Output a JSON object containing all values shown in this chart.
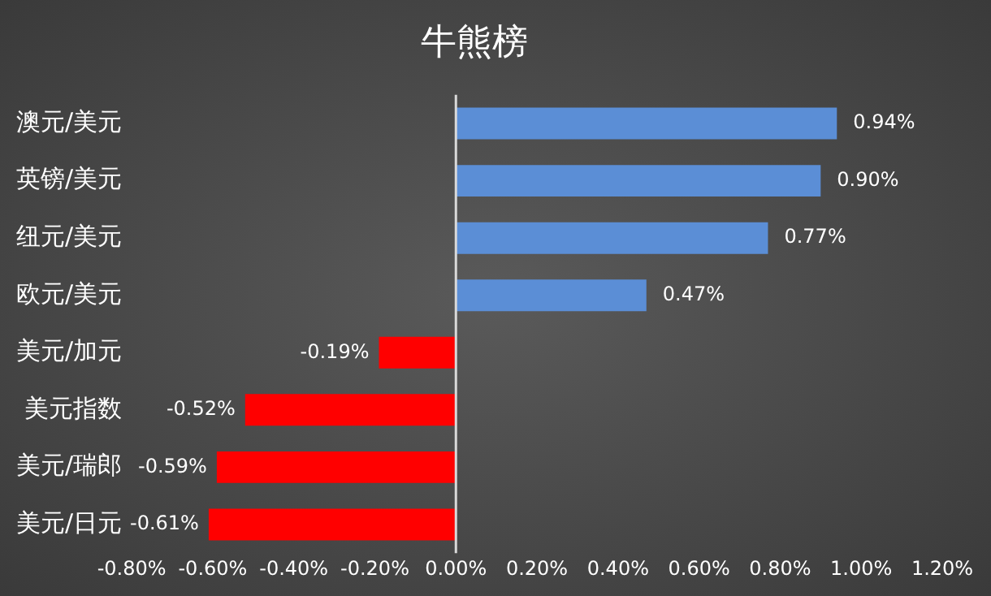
{
  "chart_data": {
    "type": "bar",
    "orientation": "horizontal",
    "title": "牛熊榜",
    "categories": [
      "澳元/美元",
      "英镑/美元",
      "纽元/美元",
      "欧元/美元",
      "美元/加元",
      "美元指数",
      "美元/瑞郎",
      "美元/日元"
    ],
    "values": [
      0.94,
      0.9,
      0.77,
      0.47,
      -0.19,
      -0.52,
      -0.59,
      -0.61
    ],
    "colors": [
      "#5b8ed6",
      "#5b8ed6",
      "#5b8ed6",
      "#5b8ed6",
      "#ff0000",
      "#ff0000",
      "#ff0000",
      "#ff0000"
    ],
    "value_labels": [
      "0.94%",
      "0.90%",
      "0.77%",
      "0.47%",
      "-0.19%",
      "-0.52%",
      "-0.59%",
      "-0.61%"
    ],
    "xlim": [
      -0.8,
      1.2
    ],
    "xticks": [
      {
        "value": -0.8,
        "label": "-0.80%"
      },
      {
        "value": -0.6,
        "label": "-0.60%"
      },
      {
        "value": -0.4,
        "label": "-0.40%"
      },
      {
        "value": -0.2,
        "label": "-0.20%"
      },
      {
        "value": 0,
        "label": "0.00%"
      },
      {
        "value": 0.2,
        "label": "0.20%"
      },
      {
        "value": 0.4,
        "label": "0.40%"
      },
      {
        "value": 0.6,
        "label": "0.60%"
      },
      {
        "value": 0.8,
        "label": "0.80%"
      },
      {
        "value": 1.0,
        "label": "1.00%"
      },
      {
        "value": 1.2,
        "label": "1.20%"
      }
    ],
    "ref_lines": [
      {
        "axis": "x",
        "value": 0,
        "color": "#d9d9d9"
      }
    ],
    "grid": false,
    "legend": false
  }
}
